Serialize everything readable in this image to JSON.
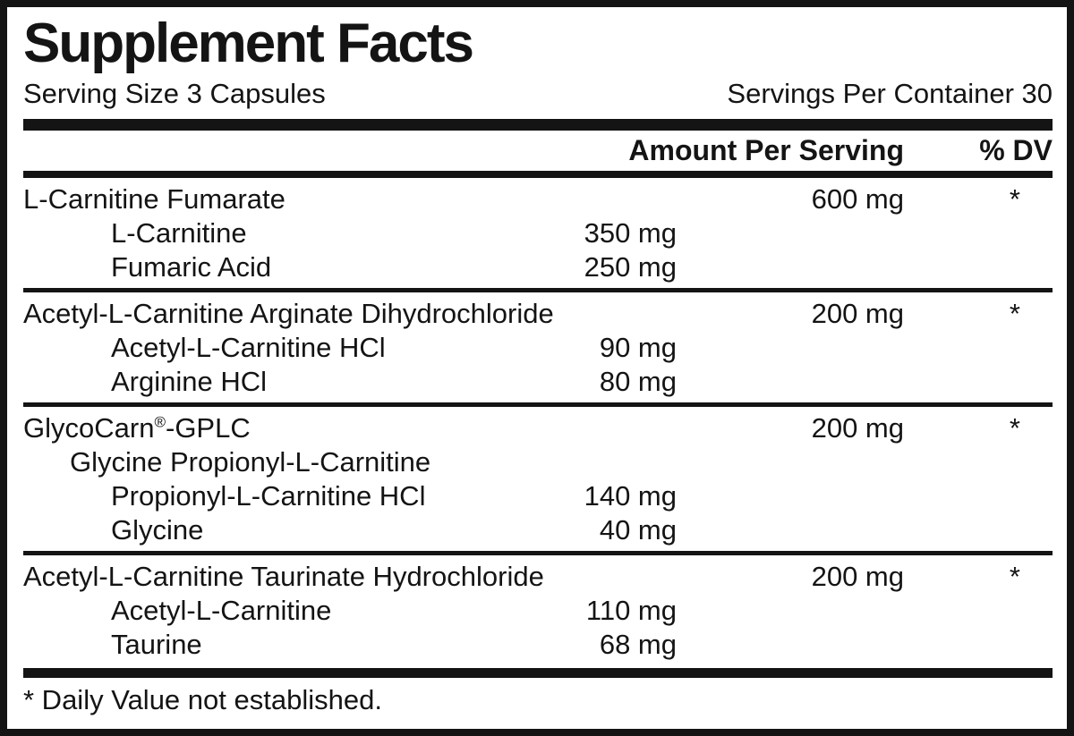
{
  "panel": {
    "title": "Supplement Facts",
    "serving_size": "Serving Size 3 Capsules",
    "servings_per_container": "Servings Per Container 30",
    "columns": {
      "amount": "Amount Per Serving",
      "dv": "% DV"
    },
    "sections": [
      {
        "name": "L-Carnitine Fumarate",
        "amount": "600 mg",
        "dv": "*",
        "subs": [
          {
            "name": "L-Carnitine",
            "amount": "350 mg"
          },
          {
            "name": "Fumaric Acid",
            "amount": "250 mg"
          }
        ]
      },
      {
        "name": "Acetyl-L-Carnitine Arginate Dihydrochloride",
        "amount": "200 mg",
        "dv": "*",
        "subs": [
          {
            "name": "Acetyl-L-Carnitine HCl",
            "amount": "90 mg"
          },
          {
            "name": "Arginine HCl",
            "amount": "80 mg"
          }
        ]
      },
      {
        "name_parts": {
          "brand": "GlycoCarn",
          "reg_mark": "®",
          "suffix": "-GPLC"
        },
        "amount": "200 mg",
        "dv": "*",
        "subtitle": "Glycine Propionyl-L-Carnitine",
        "subs": [
          {
            "name": "Propionyl-L-Carnitine HCl",
            "amount": "140 mg"
          },
          {
            "name": "Glycine",
            "amount": "40 mg"
          }
        ]
      },
      {
        "name": "Acetyl-L-Carnitine Taurinate Hydrochloride",
        "amount": "200 mg",
        "dv": "*",
        "subs": [
          {
            "name": "Acetyl-L-Carnitine",
            "amount": "110 mg"
          },
          {
            "name": "Taurine",
            "amount": "68 mg"
          }
        ]
      }
    ],
    "footnote": "* Daily Value not established.",
    "colors": {
      "ink": "#141414",
      "background": "#ffffff"
    }
  }
}
